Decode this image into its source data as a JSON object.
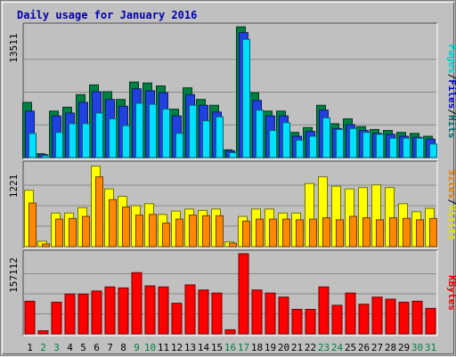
{
  "chart_data": {
    "type": "bar",
    "title": "Daily usage for January 2016",
    "categories": [
      "1",
      "2",
      "3",
      "4",
      "5",
      "6",
      "7",
      "8",
      "9",
      "10",
      "11",
      "12",
      "13",
      "14",
      "15",
      "16",
      "17",
      "18",
      "19",
      "20",
      "21",
      "22",
      "23",
      "24",
      "25",
      "26",
      "27",
      "28",
      "29",
      "30",
      "31"
    ],
    "weekend_days": [
      "2",
      "3",
      "9",
      "10",
      "16",
      "17",
      "23",
      "24",
      "30",
      "31"
    ],
    "panels": [
      {
        "id": "hits",
        "ymax_label": "13511",
        "ymax": 13511,
        "right_labels": [
          {
            "text": "Hits",
            "color": "#006666"
          },
          {
            "text": "/",
            "color": "#000000"
          },
          {
            "text": "Files",
            "color": "#0000cc"
          },
          {
            "text": "/",
            "color": "#000000"
          },
          {
            "text": "Pages",
            "color": "#00cccc"
          }
        ],
        "series": [
          {
            "name": "Hits",
            "color": "#008040",
            "values": [
              5700,
              400,
              4800,
              5200,
              6500,
              7500,
              6800,
              6000,
              7800,
              7700,
              7400,
              5000,
              7200,
              6000,
              5400,
              800,
              13500,
              6700,
              4800,
              4800,
              2600,
              3100,
              5400,
              3500,
              4000,
              3200,
              2900,
              2800,
              2600,
              2500,
              2200
            ]
          },
          {
            "name": "Files",
            "color": "#2040e0",
            "values": [
              4800,
              300,
              4300,
              4600,
              5700,
              6800,
              6000,
              5300,
              7100,
              6900,
              6700,
              4300,
              6500,
              5400,
              4700,
              700,
              12900,
              5900,
              4300,
              4300,
              2200,
              2700,
              4900,
              3000,
              3400,
              2800,
              2500,
              2400,
              2200,
              2100,
              1900
            ]
          },
          {
            "name": "Pages",
            "color": "#00e0ff",
            "values": [
              2500,
              200,
              2600,
              3500,
              3500,
              4600,
              4000,
              3300,
              5600,
              5500,
              5000,
              2500,
              5400,
              3800,
              4200,
              500,
              12200,
              4900,
              2800,
              3600,
              1800,
              2200,
              4100,
              2900,
              3000,
              2600,
              2400,
              2000,
              2000,
              2000,
              1400
            ]
          }
        ]
      },
      {
        "id": "visits",
        "ymax_label": "1221",
        "ymax": 1221,
        "right_labels": [
          {
            "text": "Visits",
            "color": "#e0e000"
          },
          {
            "text": "/",
            "color": "#000000"
          },
          {
            "text": "Sites",
            "color": "#e07800"
          }
        ],
        "series": [
          {
            "name": "Visits",
            "color": "#ffff00",
            "values": [
              840,
              80,
              500,
              500,
              580,
              1200,
              860,
              750,
              610,
              640,
              480,
              530,
              560,
              540,
              560,
              70,
              450,
              560,
              560,
              500,
              500,
              940,
              1040,
              900,
              860,
              880,
              920,
              880,
              640,
              520,
              570
            ]
          },
          {
            "name": "Sites",
            "color": "#ff8800",
            "values": [
              650,
              40,
              410,
              420,
              450,
              1040,
              700,
              590,
              470,
              480,
              350,
              410,
              470,
              460,
              460,
              50,
              380,
              410,
              410,
              410,
              400,
              410,
              430,
              400,
              450,
              430,
              400,
              430,
              420,
              400,
              420
            ]
          }
        ]
      },
      {
        "id": "kbytes",
        "ymax_label": "157112",
        "ymax": 157112,
        "right_labels": [
          {
            "text": "KBytes",
            "color": "#e00000"
          }
        ],
        "series": [
          {
            "name": "KBytes",
            "color": "#ff0000",
            "values": [
              64000,
              6000,
              62000,
              78000,
              78000,
              84000,
              92000,
              90000,
              120000,
              94000,
              92000,
              60000,
              96000,
              86000,
              80000,
              8000,
              157112,
              86000,
              80000,
              72000,
              48000,
              48000,
              92000,
              56000,
              80000,
              58000,
              72000,
              68000,
              62000,
              64000,
              50000
            ]
          }
        ]
      }
    ]
  }
}
